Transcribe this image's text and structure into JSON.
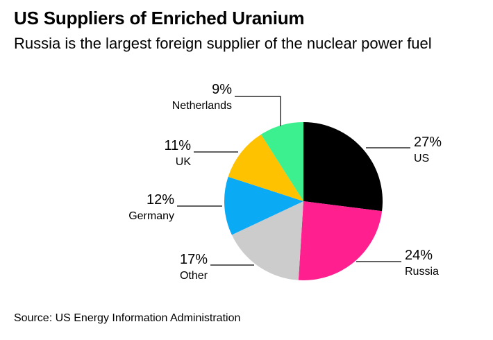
{
  "title": "US Suppliers of Enriched Uranium",
  "subtitle": "Russia is the largest foreign supplier of the nuclear power fuel",
  "source": "Source: US Energy Information Administration",
  "chart_data": {
    "type": "pie",
    "title": "US Suppliers of Enriched Uranium",
    "subtitle": "Russia is the largest foreign supplier of the nuclear power fuel",
    "slices": [
      {
        "label": "US",
        "value": 27,
        "value_label": "27%",
        "color": "#000000"
      },
      {
        "label": "Russia",
        "value": 24,
        "value_label": "24%",
        "color": "#ff1f8f"
      },
      {
        "label": "Other",
        "value": 17,
        "value_label": "17%",
        "color": "#cccccc"
      },
      {
        "label": "Germany",
        "value": 12,
        "value_label": "12%",
        "color": "#0aaaf5"
      },
      {
        "label": "UK",
        "value": 11,
        "value_label": "11%",
        "color": "#ffc200"
      },
      {
        "label": "Netherlands",
        "value": 9,
        "value_label": "9%",
        "color": "#3df08f"
      }
    ]
  }
}
